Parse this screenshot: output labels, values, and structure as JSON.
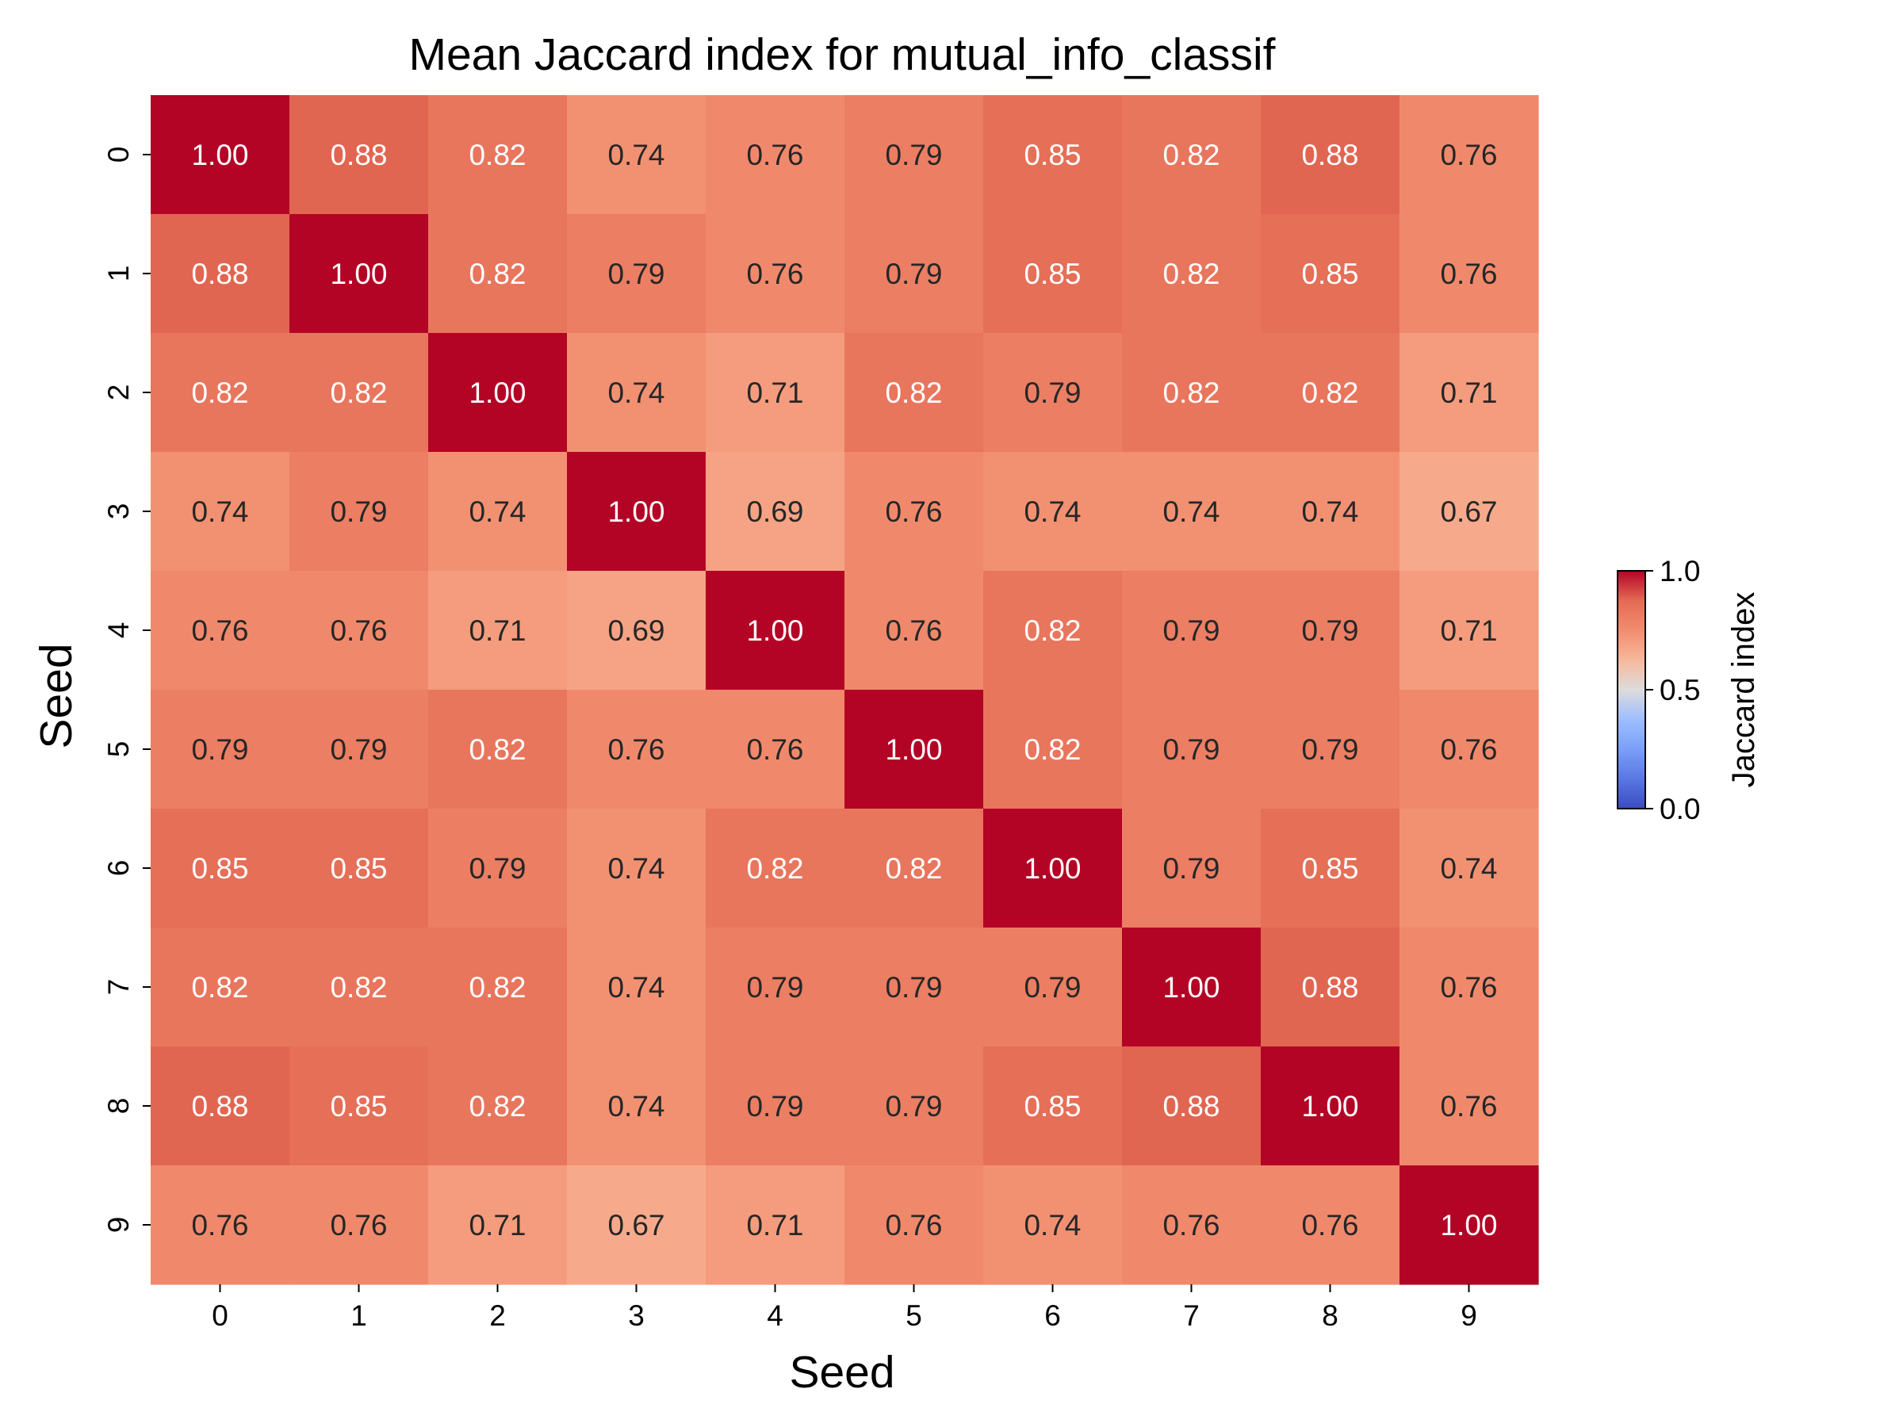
{
  "chart_data": {
    "type": "heatmap",
    "title": "Mean Jaccard index for mutual_info_classif",
    "xlabel": "Seed",
    "ylabel": "Seed",
    "x_categories": [
      "0",
      "1",
      "2",
      "3",
      "4",
      "5",
      "6",
      "7",
      "8",
      "9"
    ],
    "y_categories": [
      "0",
      "1",
      "2",
      "3",
      "4",
      "5",
      "6",
      "7",
      "8",
      "9"
    ],
    "values": [
      [
        1.0,
        0.88,
        0.82,
        0.74,
        0.76,
        0.79,
        0.85,
        0.82,
        0.88,
        0.76
      ],
      [
        0.88,
        1.0,
        0.82,
        0.79,
        0.76,
        0.79,
        0.85,
        0.82,
        0.85,
        0.76
      ],
      [
        0.82,
        0.82,
        1.0,
        0.74,
        0.71,
        0.82,
        0.79,
        0.82,
        0.82,
        0.71
      ],
      [
        0.74,
        0.79,
        0.74,
        1.0,
        0.69,
        0.76,
        0.74,
        0.74,
        0.74,
        0.67
      ],
      [
        0.76,
        0.76,
        0.71,
        0.69,
        1.0,
        0.76,
        0.82,
        0.79,
        0.79,
        0.71
      ],
      [
        0.79,
        0.79,
        0.82,
        0.76,
        0.76,
        1.0,
        0.82,
        0.79,
        0.79,
        0.76
      ],
      [
        0.85,
        0.85,
        0.79,
        0.74,
        0.82,
        0.82,
        1.0,
        0.79,
        0.85,
        0.74
      ],
      [
        0.82,
        0.82,
        0.82,
        0.74,
        0.79,
        0.79,
        0.79,
        1.0,
        0.88,
        0.76
      ],
      [
        0.88,
        0.85,
        0.82,
        0.74,
        0.79,
        0.79,
        0.85,
        0.88,
        1.0,
        0.76
      ],
      [
        0.76,
        0.76,
        0.71,
        0.67,
        0.71,
        0.76,
        0.74,
        0.76,
        0.76,
        1.0
      ]
    ],
    "colormap": "coolwarm",
    "colorbar": {
      "label": "Jaccard index",
      "range": [
        0.0,
        1.0
      ],
      "ticks": [
        "0.0",
        "0.5",
        "1.0"
      ]
    },
    "annotations_format": "2 decimals",
    "grid": false
  }
}
